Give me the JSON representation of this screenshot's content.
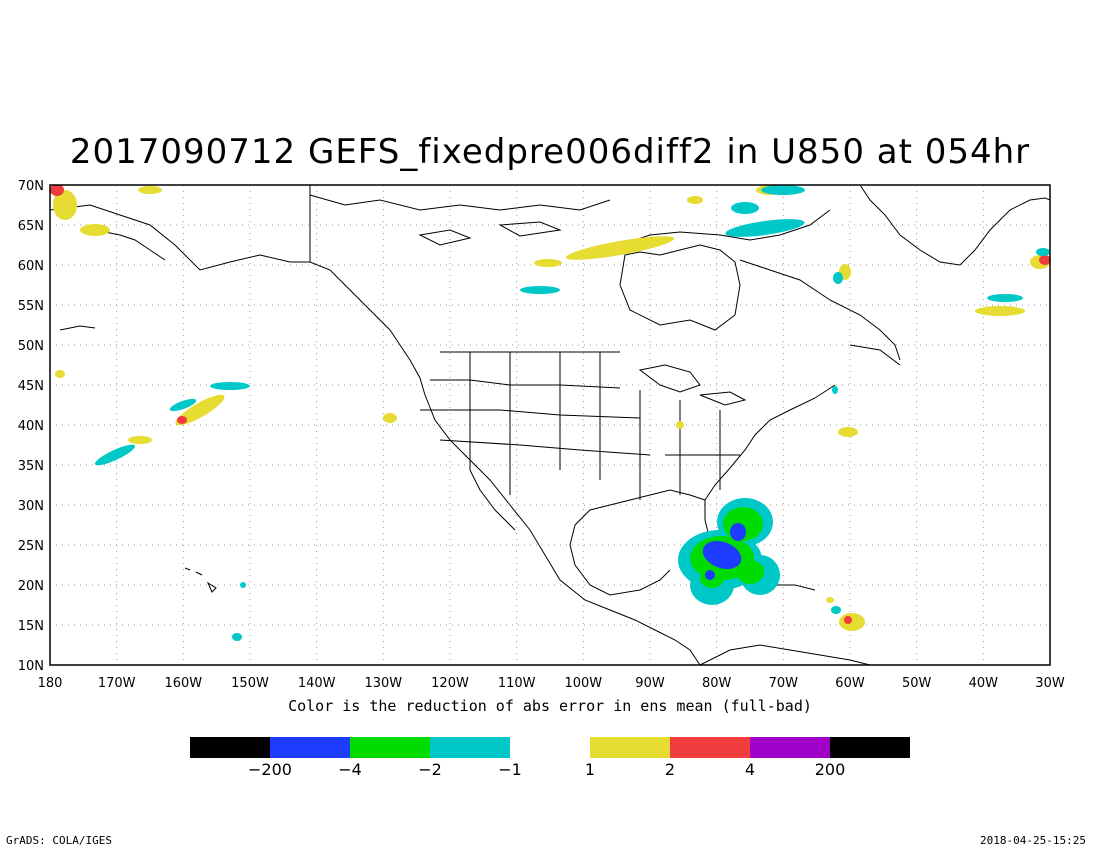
{
  "title": "2017090712 GEFS_fixedpre006diff2 in U850 at 054hr",
  "xlabel": "Color is the reduction of abs error in ens mean (full-bad)",
  "lat_labels": [
    "70N",
    "65N",
    "60N",
    "55N",
    "50N",
    "45N",
    "40N",
    "35N",
    "30N",
    "25N",
    "20N",
    "15N",
    "10N"
  ],
  "lon_labels": [
    "180",
    "170W",
    "160W",
    "150W",
    "140W",
    "130W",
    "120W",
    "110W",
    "100W",
    "90W",
    "80W",
    "70W",
    "60W",
    "50W",
    "40W",
    "30W"
  ],
  "map_extent": {
    "lon_min": -180,
    "lon_max": -30,
    "lat_min": 10,
    "lat_max": 70
  },
  "colorbar_negative": {
    "colors": [
      "#000000",
      "#1e3cff",
      "#00dc00",
      "#00c8c8"
    ],
    "labels": [
      "-200",
      "-4",
      "-2",
      "-1"
    ]
  },
  "colorbar_positive": {
    "colors": [
      "#e6dc32",
      "#f03c3c",
      "#a000c8",
      "#000000"
    ],
    "labels": [
      "1",
      "2",
      "4",
      "200"
    ]
  },
  "footer_left": "GrADS: COLA/IGES",
  "footer_right": "2018-04-25-15:25"
}
